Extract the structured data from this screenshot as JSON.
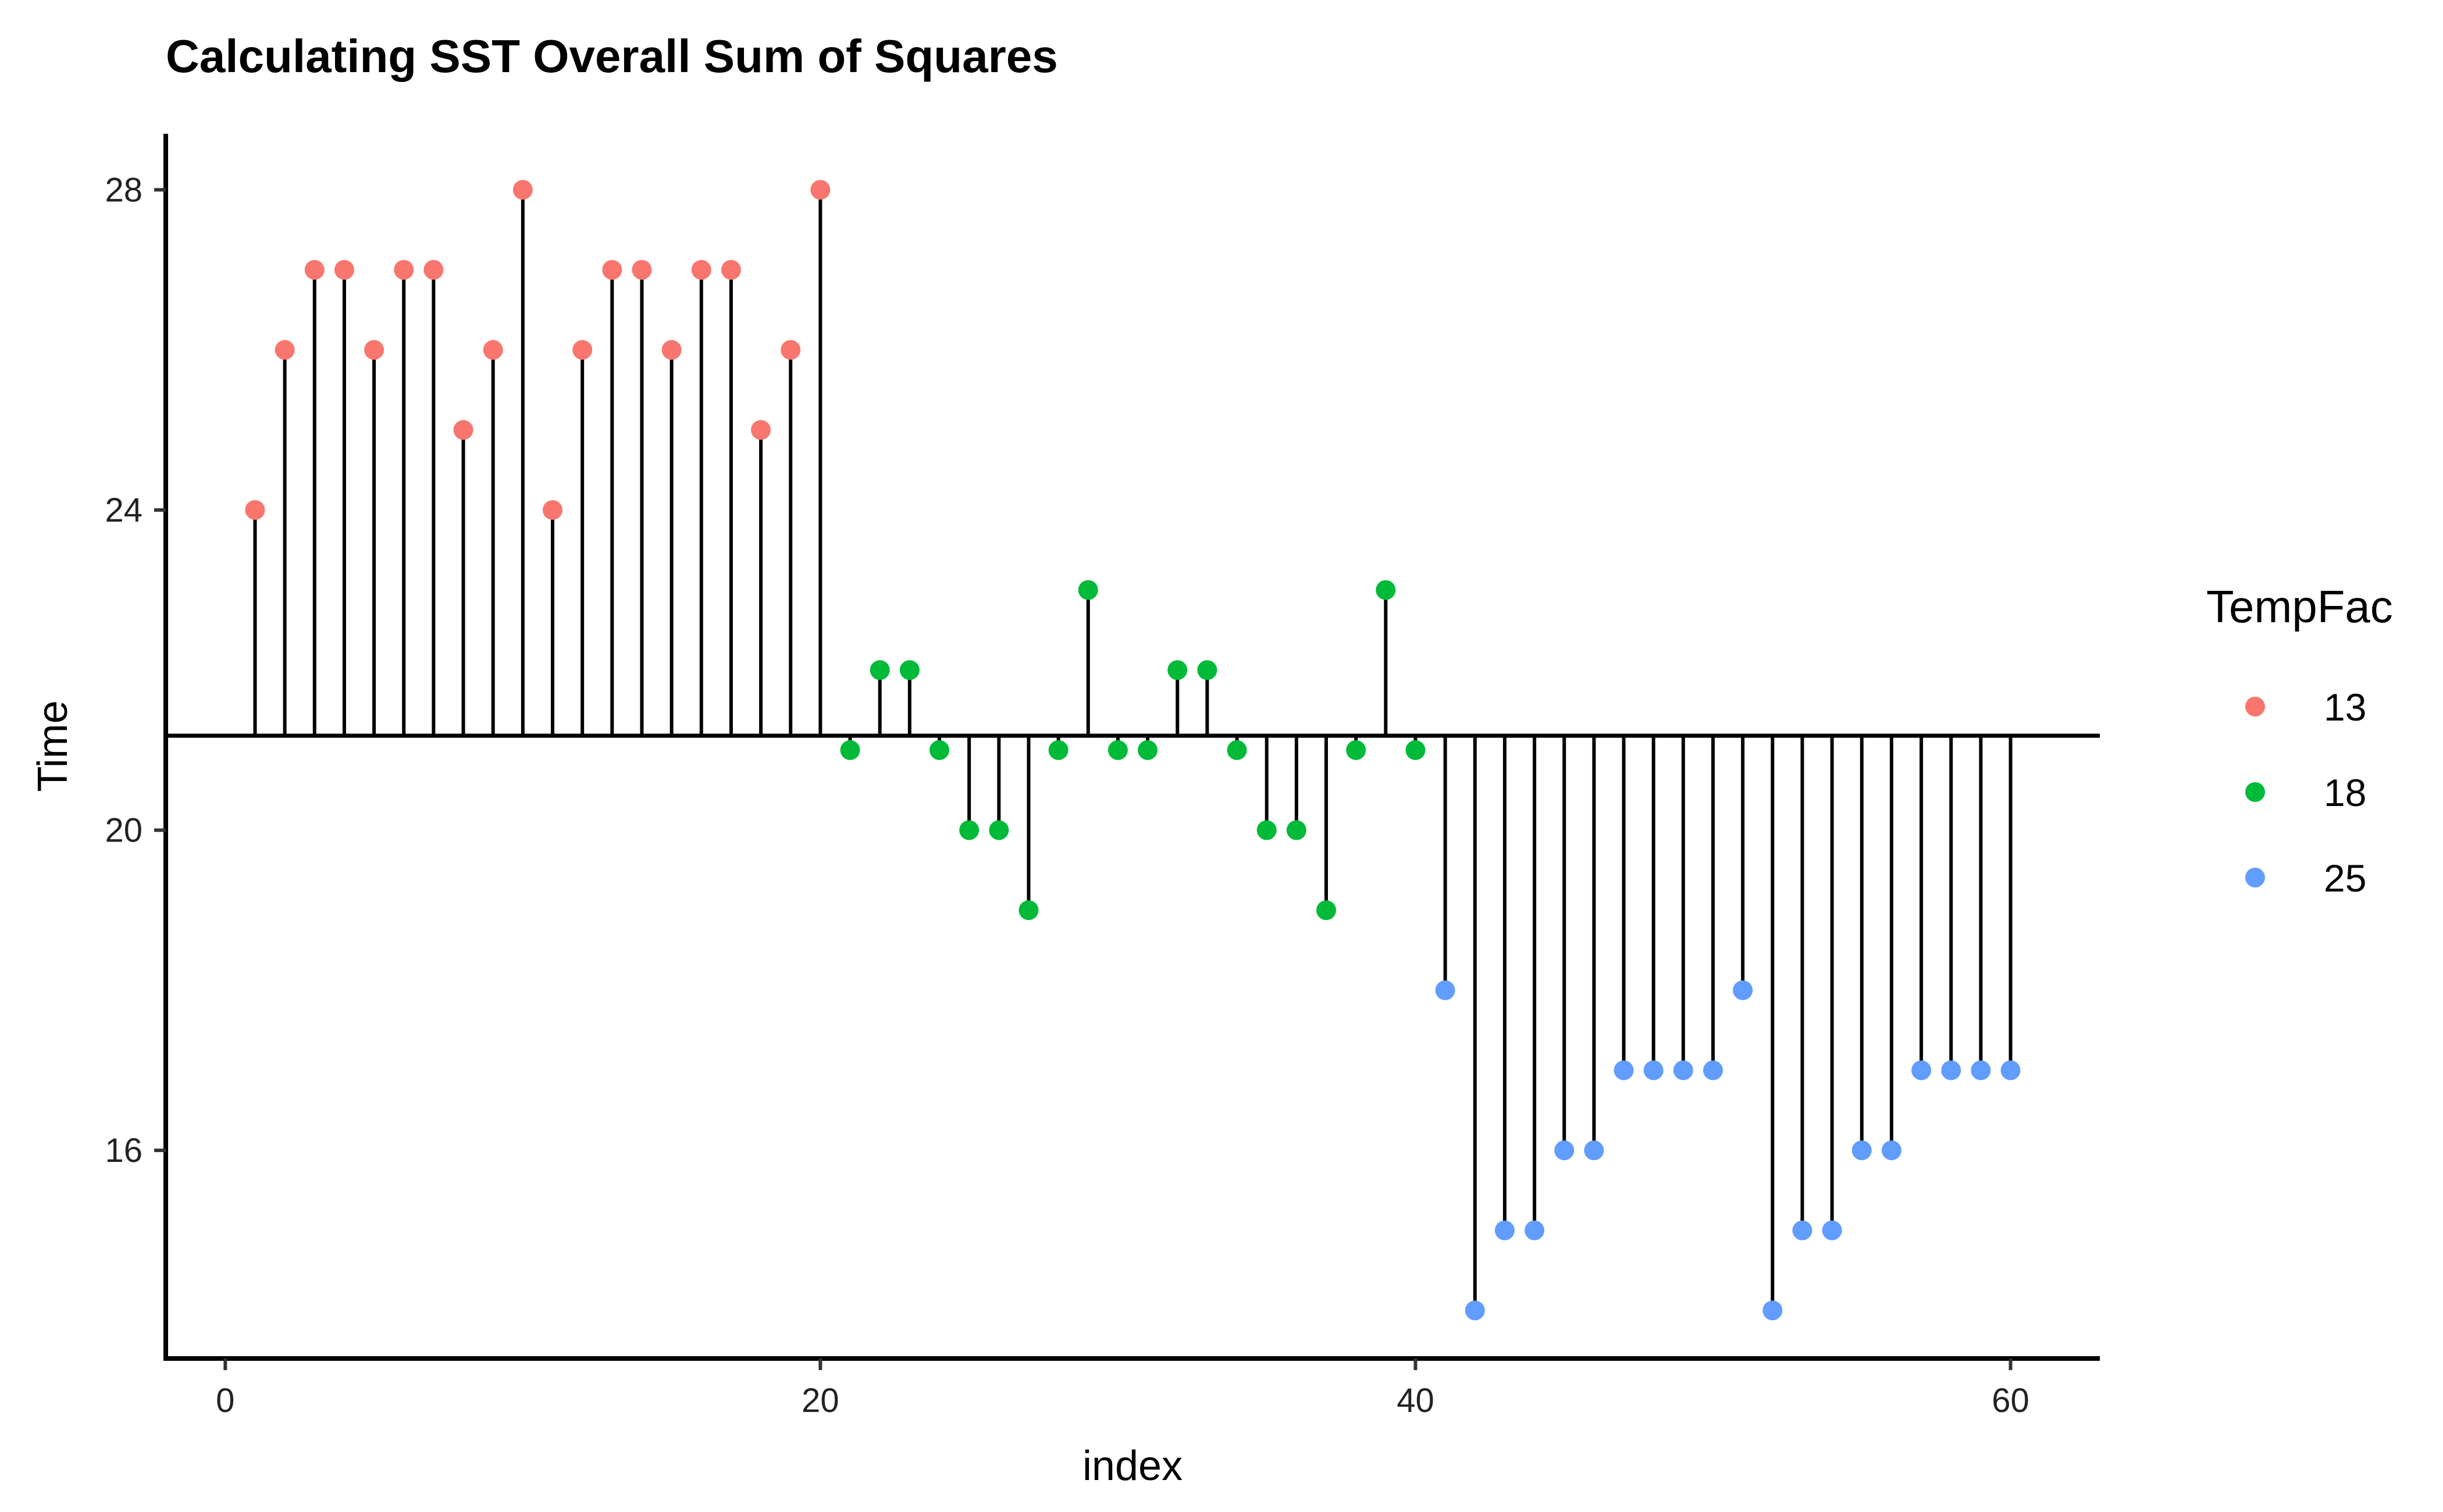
{
  "chart_data": {
    "type": "scatter",
    "style": "lollipop",
    "title": "Calculating SST Overall Sum of Squares",
    "xlabel": "index",
    "ylabel": "Time",
    "xlim": [
      -2,
      63
    ],
    "ylim": [
      13.4,
      28.7
    ],
    "xticks": [
      0,
      20,
      40,
      60
    ],
    "yticks": [
      16,
      20,
      24,
      28
    ],
    "grand_mean": 21.18,
    "grid": false,
    "legend": {
      "title": "TempFac",
      "position": "right",
      "entries": [
        {
          "label": "13",
          "color": "#F8766D"
        },
        {
          "label": "18",
          "color": "#00BA38"
        },
        {
          "label": "25",
          "color": "#619CFF"
        }
      ]
    },
    "series": [
      {
        "name": "13",
        "color": "#F8766D",
        "x": [
          1,
          2,
          3,
          4,
          5,
          6,
          7,
          8,
          9,
          10,
          11,
          12,
          13,
          14,
          15,
          16,
          17,
          18,
          19,
          20
        ],
        "y": [
          24,
          26,
          27,
          27,
          26,
          27,
          27,
          25,
          26,
          28,
          24,
          26,
          27,
          27,
          26,
          27,
          27,
          25,
          26,
          28
        ]
      },
      {
        "name": "18",
        "color": "#00BA38",
        "x": [
          21,
          22,
          23,
          24,
          25,
          26,
          27,
          28,
          29,
          30,
          31,
          32,
          33,
          34,
          35,
          36,
          37,
          38,
          39,
          40
        ],
        "y": [
          21,
          22,
          22,
          21,
          20,
          20,
          19,
          21,
          23,
          21,
          21,
          22,
          22,
          21,
          20,
          20,
          19,
          21,
          23,
          21
        ]
      },
      {
        "name": "25",
        "color": "#619CFF",
        "x": [
          41,
          42,
          43,
          44,
          45,
          46,
          47,
          48,
          49,
          50,
          51,
          52,
          53,
          54,
          55,
          56,
          57,
          58,
          59,
          60
        ],
        "y": [
          18,
          14,
          15,
          15,
          16,
          16,
          17,
          17,
          17,
          17,
          18,
          14,
          15,
          15,
          16,
          16,
          17,
          17,
          17,
          17
        ]
      }
    ]
  }
}
